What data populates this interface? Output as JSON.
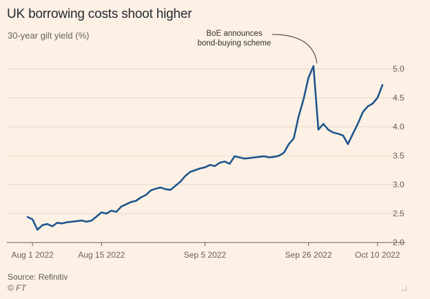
{
  "chart_data": {
    "type": "line",
    "title": "UK borrowing costs shoot higher",
    "subtitle": "30-year gilt yield (%)",
    "source": "Source: Refinitiv",
    "copyright": "© FT",
    "annotation": {
      "text_lines": [
        "BoE announces",
        "bond-buying scheme"
      ],
      "x": "2022-09-28",
      "y": 5.05
    },
    "x_ticks": [
      {
        "label": "Aug 1 2022",
        "date": "2022-08-01"
      },
      {
        "label": "Aug 15 2022",
        "date": "2022-08-15"
      },
      {
        "label": "Sep 5 2022",
        "date": "2022-09-05"
      },
      {
        "label": "Sep 26 2022",
        "date": "2022-09-26"
      },
      {
        "label": "Oct 10 2022",
        "date": "2022-10-10"
      }
    ],
    "y_ticks": [
      2.0,
      2.5,
      3.0,
      3.5,
      4.0,
      4.5,
      5.0
    ],
    "xlim": [
      "2022-07-31",
      "2022-10-11"
    ],
    "ylim": [
      2.0,
      5.0
    ],
    "grid": "horizontal",
    "line_color": "#1e558c",
    "series": [
      {
        "x": [
          "2022-07-31",
          "2022-08-01",
          "2022-08-02",
          "2022-08-03",
          "2022-08-04",
          "2022-08-05",
          "2022-08-06",
          "2022-08-07",
          "2022-08-08",
          "2022-08-09",
          "2022-08-10",
          "2022-08-11",
          "2022-08-12",
          "2022-08-13",
          "2022-08-14",
          "2022-08-15",
          "2022-08-16",
          "2022-08-17",
          "2022-08-18",
          "2022-08-19",
          "2022-08-20",
          "2022-08-21",
          "2022-08-22",
          "2022-08-23",
          "2022-08-24",
          "2022-08-25",
          "2022-08-26",
          "2022-08-27",
          "2022-08-28",
          "2022-08-29",
          "2022-08-30",
          "2022-08-31",
          "2022-09-01",
          "2022-09-02",
          "2022-09-03",
          "2022-09-04",
          "2022-09-05",
          "2022-09-06",
          "2022-09-07",
          "2022-09-08",
          "2022-09-09",
          "2022-09-10",
          "2022-09-11",
          "2022-09-12",
          "2022-09-13",
          "2022-09-14",
          "2022-09-15",
          "2022-09-16",
          "2022-09-17",
          "2022-09-18",
          "2022-09-19",
          "2022-09-20",
          "2022-09-21",
          "2022-09-22",
          "2022-09-23",
          "2022-09-24",
          "2022-09-25",
          "2022-09-26",
          "2022-09-27",
          "2022-09-28",
          "2022-09-29",
          "2022-09-30",
          "2022-10-01",
          "2022-10-02",
          "2022-10-03",
          "2022-10-04",
          "2022-10-05",
          "2022-10-06",
          "2022-10-07",
          "2022-10-08",
          "2022-10-09",
          "2022-10-10",
          "2022-10-11"
        ],
        "values": [
          2.44,
          2.4,
          2.22,
          2.3,
          2.32,
          2.28,
          2.34,
          2.33,
          2.35,
          2.36,
          2.37,
          2.38,
          2.36,
          2.38,
          2.45,
          2.52,
          2.5,
          2.55,
          2.53,
          2.62,
          2.66,
          2.7,
          2.72,
          2.78,
          2.82,
          2.9,
          2.93,
          2.95,
          2.92,
          2.91,
          2.98,
          3.05,
          3.15,
          3.22,
          3.25,
          3.28,
          3.3,
          3.34,
          3.32,
          3.38,
          3.4,
          3.36,
          3.49,
          3.47,
          3.45,
          3.46,
          3.47,
          3.48,
          3.49,
          3.47,
          3.48,
          3.5,
          3.55,
          3.7,
          3.8,
          4.18,
          4.48,
          4.85,
          5.05,
          3.95,
          4.05,
          3.95,
          3.9,
          3.88,
          3.85,
          3.7,
          3.88,
          4.05,
          4.25,
          4.35,
          4.4,
          4.5,
          4.72
        ]
      }
    ]
  }
}
